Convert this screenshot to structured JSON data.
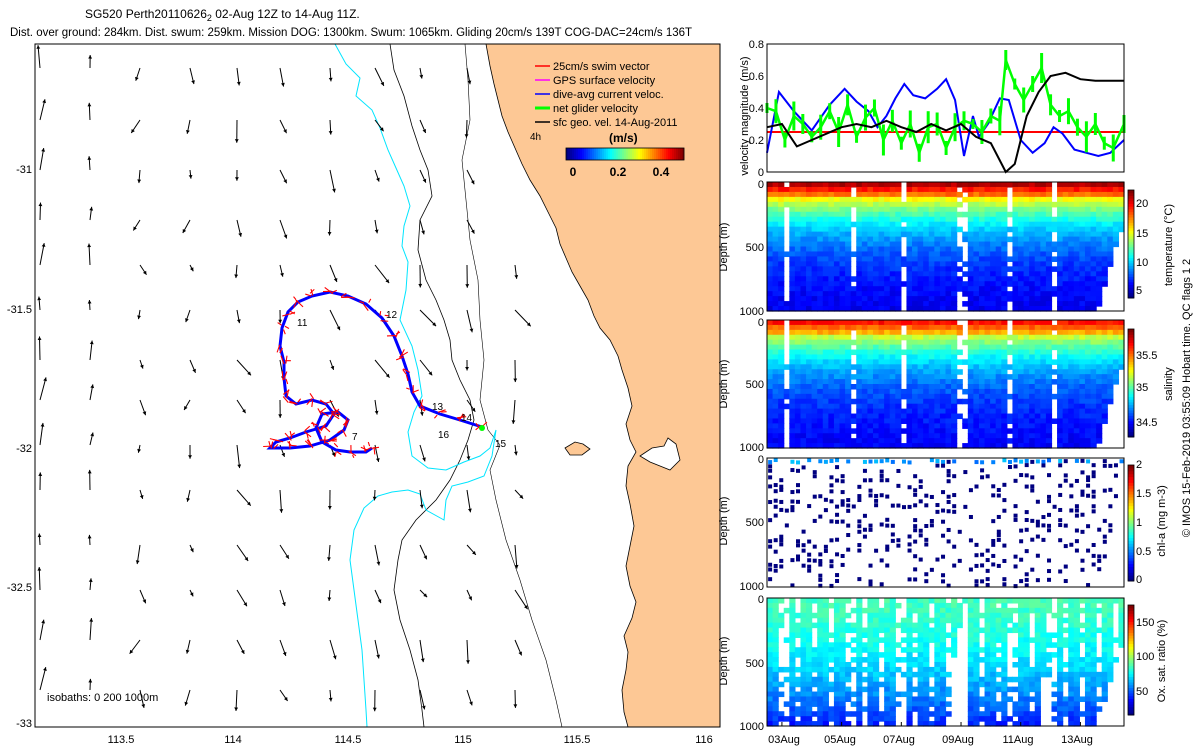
{
  "header": {
    "title_prefix": "SG520 Perth20110626",
    "title_sub": "2",
    "title_suffix": " 02-Aug 12Z to 14-Aug 11Z.",
    "subtitle": "Dist. over ground: 284km. Dist. swum: 259km. Mission DOG: 1300km. Swum: 1065km. Gliding 20cm/s 139T COG-DAC=24cm/s 136T"
  },
  "watermark": "© IMOS 15-Feb-2019 03:55:09 Hobart time. QC flags 1  2",
  "map": {
    "lon_ticks": [
      "113.5",
      "114",
      "114.5",
      "115",
      "115.5",
      "116"
    ],
    "lat_ticks": [
      "-31",
      "-31.5",
      "-32",
      "-32.5",
      "-33"
    ],
    "isobaths_label": "isobaths: 0   200  1000m",
    "legend": [
      {
        "label": "25cm/s swim vector",
        "color": "#ff0000"
      },
      {
        "label": "GPS surface velocity",
        "color": "#ff00ff"
      },
      {
        "label": "dive-avg current veloc.",
        "color": "#0000ff"
      },
      {
        "label": "net glider velocity",
        "color": "#00ff00"
      },
      {
        "label": "sfc geo. vel. 14-Aug-2011",
        "color": "#000000"
      }
    ],
    "colorbar_title": "(m/s)",
    "colorbar_ticks": [
      "0",
      "0.2",
      "0.4"
    ],
    "track_day_labels": [
      "4h",
      "7",
      "11",
      "12",
      "13",
      "14",
      "15",
      "16"
    ],
    "colors": {
      "land": "#fdc895",
      "isobath_200": "#00e5ff",
      "isobath_1000": "#000000"
    }
  },
  "chart_data": [
    {
      "type": "line",
      "title": "",
      "ylabel": "velocity magnitude (m/s)",
      "ylim": [
        0,
        0.8
      ],
      "yticks": [
        "0",
        "0.2",
        "0.4",
        "0.6",
        "0.8"
      ],
      "x_range_days": [
        2.5,
        14.46
      ],
      "series": [
        {
          "name": "swim speed",
          "color": "#ff0000",
          "x": [
            2.5,
            14.46
          ],
          "values": [
            0.25,
            0.25
          ]
        },
        {
          "name": "dive-avg current veloc.",
          "color": "#0000ff",
          "x": [
            2.5,
            2.9,
            3.4,
            4.0,
            4.6,
            5.1,
            5.5,
            5.9,
            6.2,
            6.5,
            6.8,
            7.1,
            7.4,
            7.8,
            8.2,
            8.5,
            8.8,
            9.1,
            9.4,
            9.6,
            9.9,
            10.3,
            10.6,
            11.0,
            11.4,
            11.8,
            12.1,
            12.4,
            12.8,
            13.2,
            13.6,
            14.0,
            14.46
          ],
          "values": [
            0.12,
            0.5,
            0.38,
            0.26,
            0.42,
            0.52,
            0.44,
            0.38,
            0.28,
            0.35,
            0.46,
            0.55,
            0.48,
            0.46,
            0.52,
            0.58,
            0.45,
            0.1,
            0.35,
            0.22,
            0.3,
            0.46,
            0.45,
            0.2,
            0.12,
            0.18,
            0.28,
            0.24,
            0.14,
            0.12,
            0.1,
            0.12,
            0.2
          ]
        },
        {
          "name": "net glider velocity",
          "color": "#00ff00",
          "x": [
            2.5,
            2.8,
            3.1,
            3.4,
            3.7,
            4.0,
            4.3,
            4.6,
            4.9,
            5.2,
            5.5,
            5.8,
            6.1,
            6.4,
            6.7,
            7.0,
            7.3,
            7.6,
            7.9,
            8.2,
            8.5,
            8.8,
            9.1,
            9.4,
            9.7,
            10.0,
            10.3,
            10.5,
            10.8,
            11.1,
            11.4,
            11.7,
            12.0,
            12.3,
            12.6,
            12.9,
            13.2,
            13.5,
            13.8,
            14.1,
            14.46
          ],
          "values": [
            0.4,
            0.38,
            0.2,
            0.35,
            0.3,
            0.22,
            0.28,
            0.38,
            0.25,
            0.42,
            0.22,
            0.34,
            0.4,
            0.2,
            0.32,
            0.18,
            0.3,
            0.12,
            0.28,
            0.3,
            0.15,
            0.28,
            0.32,
            0.3,
            0.25,
            0.35,
            0.32,
            0.7,
            0.55,
            0.45,
            0.55,
            0.65,
            0.42,
            0.35,
            0.38,
            0.28,
            0.22,
            0.3,
            0.18,
            0.15,
            0.3
          ]
        },
        {
          "name": "sfc geo. vel.",
          "color": "#000000",
          "x": [
            2.5,
            3.0,
            3.5,
            4.0,
            4.5,
            5.0,
            5.5,
            6.0,
            6.5,
            7.0,
            7.5,
            8.0,
            8.5,
            9.0,
            9.5,
            10.0,
            10.5,
            10.8,
            11.2,
            11.6,
            12.0,
            12.5,
            13.0,
            13.5,
            14.0,
            14.46
          ],
          "values": [
            0.28,
            0.3,
            0.16,
            0.2,
            0.24,
            0.28,
            0.3,
            0.28,
            0.32,
            0.28,
            0.25,
            0.3,
            0.26,
            0.3,
            0.22,
            0.18,
            0.0,
            0.05,
            0.35,
            0.5,
            0.6,
            0.62,
            0.58,
            0.57,
            0.57,
            0.57
          ]
        }
      ]
    },
    {
      "type": "heatmap",
      "title": "temperature",
      "ylabel": "Depth (m)",
      "colorbar_label": "temperature (°C)",
      "ylim": [
        1000,
        0
      ],
      "yticks": [
        "0",
        "500",
        "1000"
      ],
      "clim": [
        3,
        22
      ],
      "colorbar_ticks": [
        "5",
        "10",
        "15",
        "20"
      ],
      "surface_value": 19.5,
      "deep_value": 4.5
    },
    {
      "type": "heatmap",
      "title": "salinity",
      "ylabel": "Depth (m)",
      "colorbar_label": "salinity",
      "ylim": [
        1000,
        0
      ],
      "yticks": [
        "0",
        "500",
        "1000"
      ],
      "clim": [
        34.3,
        35.9
      ],
      "colorbar_ticks": [
        "34.5",
        "35",
        "35.5"
      ],
      "surface_value": 35.55,
      "deep_value": 34.45
    },
    {
      "type": "scatter",
      "title": "chl-a",
      "ylabel": "Depth (m)",
      "colorbar_label": "chl-a (mg m-3)",
      "ylim": [
        1000,
        0
      ],
      "yticks": [
        "0",
        "500",
        "1000"
      ],
      "clim": [
        0,
        2
      ],
      "colorbar_ticks": [
        "0",
        "0.5",
        "1",
        "1.5",
        "2"
      ],
      "surface_value": 0.45,
      "deep_value": 0.0
    },
    {
      "type": "heatmap",
      "title": "oxygen saturation",
      "ylabel": "Depth (m)",
      "colorbar_label": "Ox. sat. ratio (%)",
      "ylim": [
        1000,
        0
      ],
      "yticks": [
        "0",
        "500",
        "1000"
      ],
      "clim": [
        20,
        175
      ],
      "colorbar_ticks": [
        "50",
        "100",
        "150"
      ],
      "surface_value": 88,
      "deep_value": 45
    }
  ],
  "time_axis": {
    "labels": [
      "03Aug",
      "05Aug",
      "07Aug",
      "09Aug",
      "11Aug",
      "13Aug"
    ],
    "days": [
      3,
      5,
      7,
      9,
      11,
      13
    ]
  }
}
